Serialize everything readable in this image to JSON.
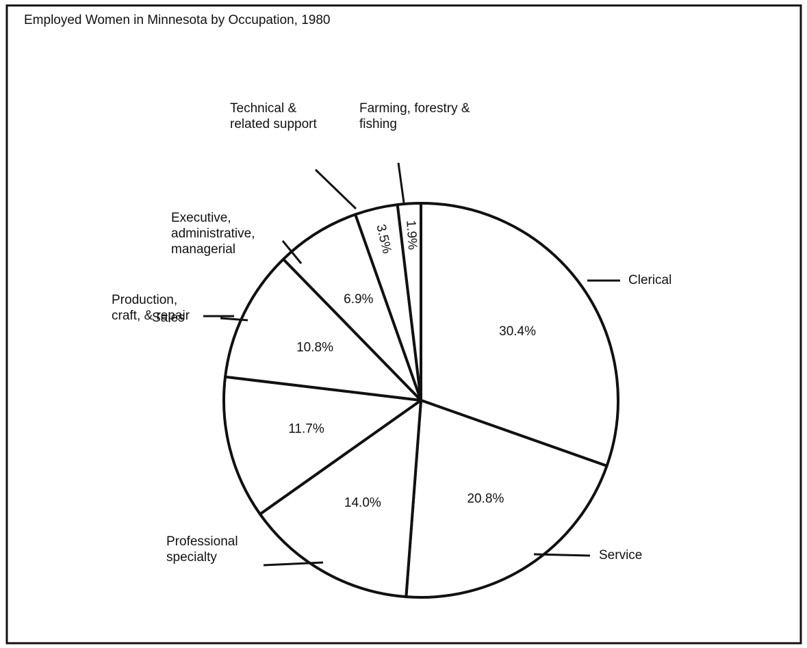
{
  "chart_data": {
    "type": "pie",
    "title": "Employed Women in Minnesota by Occupation, 1980",
    "categories": [
      "Clerical",
      "Service",
      "Professional specialty",
      "Production, craft, & repair",
      "Sales",
      "Executive, administrative, managerial",
      "Technical & related support",
      "Farming, forestry & fishing"
    ],
    "values": [
      30.4,
      20.8,
      14.0,
      11.7,
      10.8,
      6.9,
      3.5,
      1.9
    ],
    "value_labels": [
      "30.4%",
      "20.8%",
      "14.0%",
      "11.7%",
      "10.8%",
      "6.9%",
      "3.5%",
      "1.9%"
    ],
    "color": "#ffffff"
  }
}
